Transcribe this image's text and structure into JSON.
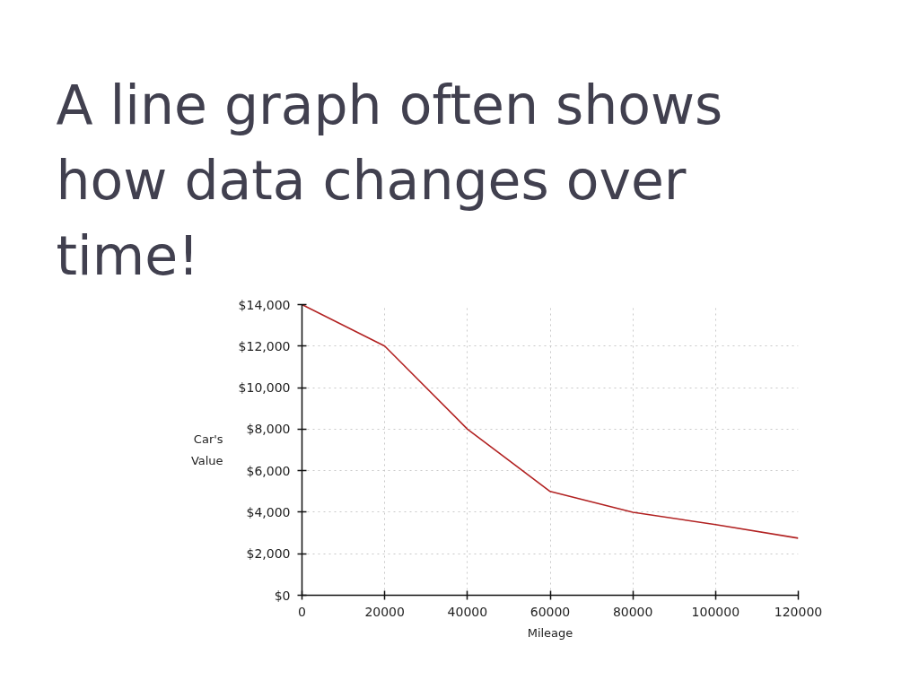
{
  "chart_data": {
    "type": "line",
    "title": "A line graph often shows how data changes over time!",
    "xlabel": "Mileage",
    "ylabel": "Car's Value",
    "x": [
      0,
      20000,
      40000,
      60000,
      80000,
      100000,
      120000
    ],
    "series": [
      {
        "color": "#b22222",
        "values": [
          14000,
          12000,
          8000,
          5000,
          4000,
          3400,
          2750
        ]
      }
    ],
    "xlim": [
      0,
      120000
    ],
    "ylim": [
      0,
      14000
    ],
    "xticks": [
      0,
      20000,
      40000,
      60000,
      80000,
      100000,
      120000
    ],
    "yticks": [
      {
        "value": 0,
        "label": "$0"
      },
      {
        "value": 2000,
        "label": "$2,000"
      },
      {
        "value": 4000,
        "label": "$4,000"
      },
      {
        "value": 6000,
        "label": "$6,000"
      },
      {
        "value": 8000,
        "label": "$8,000"
      },
      {
        "value": 10000,
        "label": "$10,000"
      },
      {
        "value": 12000,
        "label": "$12,000"
      },
      {
        "value": 14000,
        "label": "$14,000"
      }
    ],
    "grid": true,
    "line_style": "solid"
  }
}
